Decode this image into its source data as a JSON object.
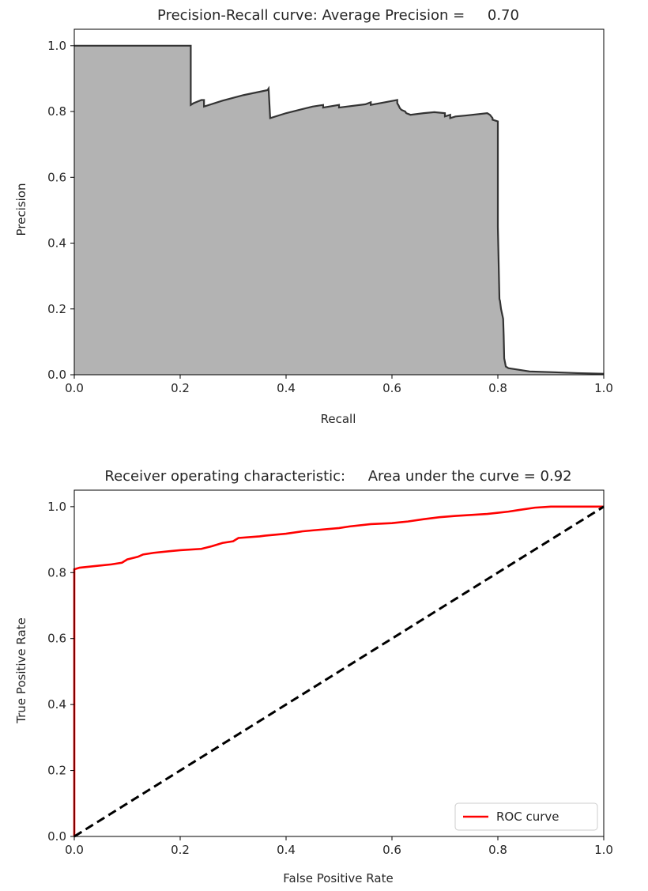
{
  "chart_data": [
    {
      "type": "area",
      "title": "Precision-Recall curve: Average Precision =     0.70",
      "xlabel": "Recall",
      "ylabel": "Precision",
      "xlim": [
        0.0,
        1.0
      ],
      "ylim": [
        0.0,
        1.05
      ],
      "xticks": [
        "0.0",
        "0.2",
        "0.4",
        "0.6",
        "0.8",
        "1.0"
      ],
      "yticks": [
        "0.0",
        "0.2",
        "0.4",
        "0.6",
        "0.8",
        "1.0"
      ],
      "grid": false,
      "fill_color": "#b3b3b3",
      "line_color": "#333333",
      "series": [
        {
          "x": [
            0.0,
            0.22,
            0.22,
            0.225,
            0.24,
            0.245,
            0.245,
            0.28,
            0.32,
            0.365,
            0.367,
            0.37,
            0.4,
            0.45,
            0.47,
            0.47,
            0.5,
            0.5,
            0.55,
            0.56,
            0.56,
            0.61,
            0.61,
            0.612,
            0.615,
            0.618,
            0.625,
            0.627,
            0.635,
            0.66,
            0.68,
            0.7,
            0.7,
            0.71,
            0.71,
            0.72,
            0.74,
            0.78,
            0.785,
            0.79,
            0.79,
            0.8,
            0.8,
            0.803,
            0.804,
            0.806,
            0.81,
            0.811,
            0.812,
            0.815,
            0.82,
            0.86,
            0.9,
            0.95,
            1.0
          ],
          "y": [
            1.0,
            1.0,
            0.82,
            0.825,
            0.835,
            0.835,
            0.815,
            0.833,
            0.85,
            0.865,
            0.87,
            0.78,
            0.795,
            0.815,
            0.82,
            0.812,
            0.82,
            0.812,
            0.822,
            0.828,
            0.82,
            0.835,
            0.825,
            0.82,
            0.81,
            0.805,
            0.8,
            0.795,
            0.79,
            0.795,
            0.798,
            0.795,
            0.785,
            0.79,
            0.78,
            0.785,
            0.788,
            0.795,
            0.79,
            0.78,
            0.775,
            0.77,
            0.45,
            0.23,
            0.225,
            0.2,
            0.17,
            0.12,
            0.05,
            0.025,
            0.02,
            0.01,
            0.008,
            0.005,
            0.003
          ]
        }
      ]
    },
    {
      "type": "line",
      "title": "Receiver operating characteristic:     Area under the curve = 0.92",
      "xlabel": "False Positive Rate",
      "ylabel": "True Positive Rate",
      "xlim": [
        0.0,
        1.0
      ],
      "ylim": [
        0.0,
        1.05
      ],
      "xticks": [
        "0.0",
        "0.2",
        "0.4",
        "0.6",
        "0.8",
        "1.0"
      ],
      "yticks": [
        "0.0",
        "0.2",
        "0.4",
        "0.6",
        "0.8",
        "1.0"
      ],
      "grid": false,
      "legend": {
        "position": "lower-right",
        "entries": [
          "ROC curve"
        ]
      },
      "series": [
        {
          "name": "ROC curve",
          "color": "#ff0000",
          "x": [
            0.0,
            0.0,
            0.0,
            0.01,
            0.04,
            0.07,
            0.09,
            0.1,
            0.12,
            0.13,
            0.15,
            0.18,
            0.2,
            0.24,
            0.26,
            0.28,
            0.3,
            0.31,
            0.35,
            0.36,
            0.4,
            0.43,
            0.45,
            0.5,
            0.52,
            0.56,
            0.6,
            0.63,
            0.66,
            0.69,
            0.72,
            0.78,
            0.82,
            0.84,
            0.87,
            0.9,
            1.0
          ],
          "y": [
            0.0,
            0.5,
            0.81,
            0.815,
            0.82,
            0.825,
            0.83,
            0.84,
            0.848,
            0.855,
            0.86,
            0.865,
            0.868,
            0.872,
            0.88,
            0.89,
            0.895,
            0.905,
            0.91,
            0.912,
            0.918,
            0.925,
            0.928,
            0.935,
            0.94,
            0.947,
            0.95,
            0.955,
            0.962,
            0.968,
            0.972,
            0.978,
            0.985,
            0.99,
            0.997,
            1.0,
            1.0
          ]
        },
        {
          "color": "#000000",
          "dashed": true,
          "x": [
            0.0,
            1.0
          ],
          "y": [
            0.0,
            1.0
          ]
        }
      ]
    }
  ]
}
